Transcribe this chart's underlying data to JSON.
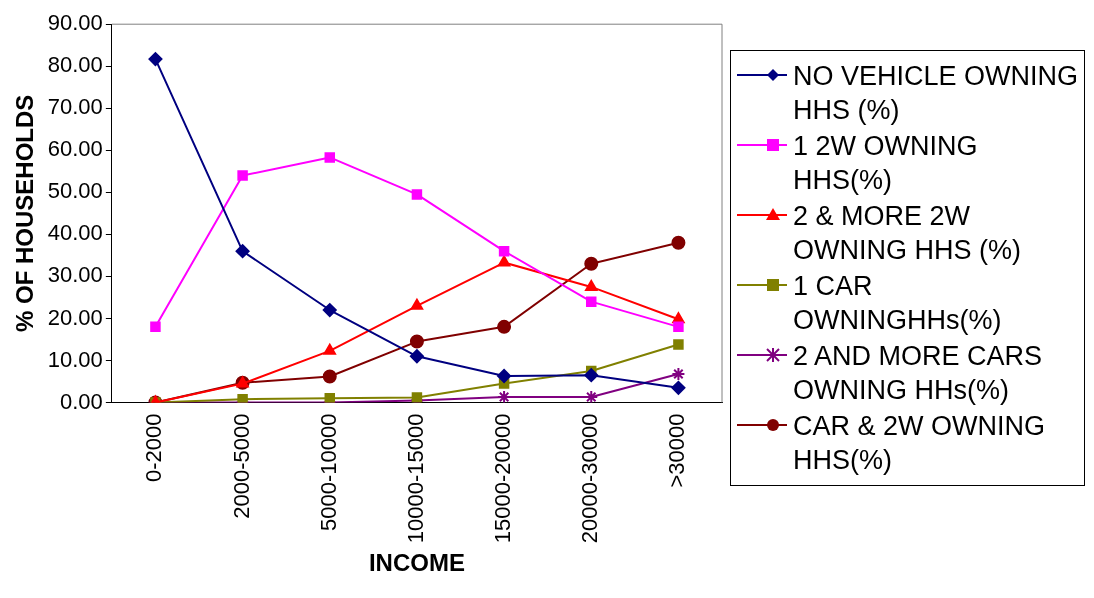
{
  "chart_data": {
    "type": "line",
    "xlabel": "INCOME",
    "ylabel": "% OF HOUSEHOLDS",
    "categories": [
      "0-2000",
      "2000-5000",
      "5000-10000",
      "10000-15000",
      "15000-20000",
      "20000-30000",
      ">30000"
    ],
    "ylim": [
      0,
      90
    ],
    "yticks": [
      {
        "value": 0,
        "label": "0.00"
      },
      {
        "value": 10,
        "label": "10.00"
      },
      {
        "value": 20,
        "label": "20.00"
      },
      {
        "value": 30,
        "label": "30.00"
      },
      {
        "value": 40,
        "label": "40.00"
      },
      {
        "value": 50,
        "label": "50.00"
      },
      {
        "value": 60,
        "label": "60.00"
      },
      {
        "value": 70,
        "label": "70.00"
      },
      {
        "value": 80,
        "label": "80.00"
      },
      {
        "value": 90,
        "label": "90.00"
      }
    ],
    "grid": false,
    "legend": "right",
    "line_style": "solid",
    "series": [
      {
        "name": "NO VEHICLE OWNING HHS (%)",
        "color": "#000080",
        "marker": "diamond",
        "values": [
          81.7,
          36,
          22,
          11,
          6.3,
          6.5,
          3.5
        ]
      },
      {
        "name": "1 2W OWNING HHS(%)",
        "color": "#ff00ff",
        "marker": "square",
        "values": [
          18,
          54,
          58.3,
          49.5,
          36,
          24,
          18
        ]
      },
      {
        "name": "2 & MORE 2W OWNING HHS (%)",
        "color": "#ff0000",
        "marker": "triangle",
        "values": [
          0,
          4.5,
          12.3,
          23,
          33.3,
          27.5,
          19.8
        ]
      },
      {
        "name": "1 CAR OWNINGHHs(%)",
        "color": "#808000",
        "marker": "square",
        "values": [
          0,
          0.8,
          1,
          1.2,
          4.5,
          7.5,
          13.8
        ]
      },
      {
        "name": "2 AND MORE CARS OWNING HHs(%)",
        "color": "#800080",
        "marker": "cross",
        "values": [
          0,
          0,
          0,
          0.5,
          1.3,
          1.3,
          6.8
        ]
      },
      {
        "name": "CAR & 2W OWNING HHS(%)",
        "color": "#800000",
        "marker": "circle",
        "values": [
          0,
          4.7,
          6.2,
          14.5,
          18,
          33,
          38
        ]
      }
    ]
  }
}
